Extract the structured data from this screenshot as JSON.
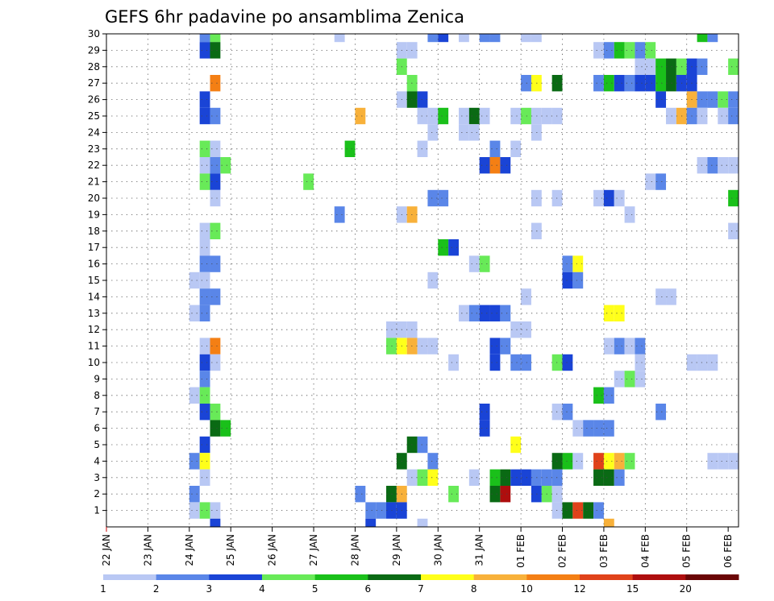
{
  "chart_data": {
    "type": "heatmap",
    "title": "GEFS 6hr padavine po ansamblima Zenica",
    "xlabel": "",
    "ylabel": "",
    "x_ticks": [
      "22 JAN",
      "23 JAN",
      "24 JAN",
      "25 JAN",
      "26 JAN",
      "27 JAN",
      "28 JAN",
      "29 JAN",
      "30 JAN",
      "31 JAN",
      "01 FEB",
      "02 FEB",
      "03 FEB",
      "04 FEB",
      "05 FEB",
      "06 FEB"
    ],
    "y_ticks": [
      1,
      2,
      3,
      4,
      5,
      6,
      7,
      8,
      9,
      10,
      11,
      12,
      13,
      14,
      15,
      16,
      17,
      18,
      19,
      20,
      21,
      22,
      23,
      24,
      25,
      26,
      27,
      28,
      29,
      30
    ],
    "xlim_days": [
      0,
      15.25
    ],
    "ylim": [
      0,
      30
    ],
    "grid": true,
    "legend": "colorbar-bottom",
    "colorbar": {
      "levels": [
        "1",
        "2",
        "3",
        "4",
        "5",
        "6",
        "7",
        "8",
        "10",
        "12",
        "15",
        "20"
      ],
      "colors": [
        "#b9c8f4",
        "#5a86e8",
        "#1a44d6",
        "#68ea58",
        "#1ac01a",
        "#0a6a14",
        "#ffff1a",
        "#f8b13a",
        "#f47f14",
        "#e0421a",
        "#ae0e0e",
        "#6a0606"
      ]
    },
    "cells_note": "each cell: [day offset from 22 JAN, member 1-30, precip class 1-12]",
    "cells": [
      [
        2.25,
        30,
        2
      ],
      [
        2.5,
        30,
        4
      ],
      [
        5.5,
        30,
        1
      ],
      [
        7.75,
        30,
        2
      ],
      [
        8.0,
        30,
        3
      ],
      [
        8.5,
        30,
        1
      ],
      [
        9.0,
        30,
        2
      ],
      [
        9.25,
        30,
        2
      ],
      [
        10.0,
        30,
        1
      ],
      [
        10.25,
        30,
        1
      ],
      [
        14.25,
        30,
        5
      ],
      [
        14.5,
        30,
        2
      ],
      [
        2.25,
        29,
        3
      ],
      [
        2.5,
        29,
        6
      ],
      [
        7.0,
        29,
        1
      ],
      [
        7.25,
        29,
        1
      ],
      [
        11.75,
        29,
        1
      ],
      [
        12.0,
        29,
        2
      ],
      [
        12.25,
        29,
        5
      ],
      [
        12.5,
        29,
        4
      ],
      [
        12.75,
        29,
        2
      ],
      [
        13.0,
        29,
        4
      ],
      [
        7.0,
        28,
        4
      ],
      [
        12.75,
        28,
        1
      ],
      [
        13.0,
        28,
        1
      ],
      [
        13.25,
        28,
        5
      ],
      [
        13.5,
        28,
        6
      ],
      [
        13.75,
        28,
        4
      ],
      [
        14.0,
        28,
        3
      ],
      [
        14.25,
        28,
        2
      ],
      [
        15.0,
        28,
        4
      ],
      [
        2.5,
        27,
        9
      ],
      [
        7.25,
        27,
        4
      ],
      [
        10.0,
        27,
        2
      ],
      [
        10.25,
        27,
        7
      ],
      [
        10.75,
        27,
        6
      ],
      [
        11.75,
        27,
        2
      ],
      [
        12.0,
        27,
        5
      ],
      [
        12.25,
        27,
        3
      ],
      [
        12.5,
        27,
        2
      ],
      [
        12.75,
        27,
        3
      ],
      [
        13.0,
        27,
        3
      ],
      [
        13.25,
        27,
        5
      ],
      [
        13.5,
        27,
        6
      ],
      [
        13.75,
        27,
        3
      ],
      [
        14.0,
        27,
        3
      ],
      [
        2.25,
        26,
        3
      ],
      [
        7.0,
        26,
        1
      ],
      [
        7.25,
        26,
        6
      ],
      [
        7.5,
        26,
        3
      ],
      [
        13.25,
        26,
        3
      ],
      [
        14.0,
        26,
        8
      ],
      [
        14.25,
        26,
        2
      ],
      [
        14.5,
        26,
        2
      ],
      [
        14.75,
        26,
        4
      ],
      [
        15.0,
        26,
        2
      ],
      [
        2.25,
        25,
        3
      ],
      [
        2.5,
        25,
        2
      ],
      [
        6.0,
        25,
        8
      ],
      [
        7.5,
        25,
        1
      ],
      [
        7.75,
        25,
        1
      ],
      [
        8.0,
        25,
        5
      ],
      [
        8.5,
        25,
        1
      ],
      [
        8.75,
        25,
        6
      ],
      [
        9.0,
        25,
        1
      ],
      [
        9.75,
        25,
        1
      ],
      [
        10.0,
        25,
        4
      ],
      [
        10.25,
        25,
        1
      ],
      [
        10.5,
        25,
        1
      ],
      [
        10.75,
        25,
        1
      ],
      [
        13.5,
        25,
        1
      ],
      [
        13.75,
        25,
        8
      ],
      [
        14.0,
        25,
        2
      ],
      [
        14.25,
        25,
        1
      ],
      [
        14.75,
        25,
        1
      ],
      [
        15.0,
        25,
        2
      ],
      [
        15.25,
        25,
        3
      ],
      [
        7.75,
        24,
        1
      ],
      [
        8.5,
        24,
        1
      ],
      [
        8.75,
        24,
        1
      ],
      [
        10.25,
        24,
        1
      ],
      [
        2.25,
        23,
        4
      ],
      [
        2.5,
        23,
        1
      ],
      [
        5.75,
        23,
        5
      ],
      [
        7.5,
        23,
        1
      ],
      [
        9.25,
        23,
        2
      ],
      [
        9.75,
        23,
        1
      ],
      [
        2.25,
        22,
        1
      ],
      [
        2.5,
        22,
        2
      ],
      [
        2.75,
        22,
        4
      ],
      [
        9.0,
        22,
        3
      ],
      [
        9.25,
        22,
        9
      ],
      [
        9.5,
        22,
        3
      ],
      [
        14.25,
        22,
        1
      ],
      [
        14.5,
        22,
        2
      ],
      [
        14.75,
        22,
        1
      ],
      [
        15.0,
        22,
        1
      ],
      [
        2.25,
        21,
        4
      ],
      [
        2.5,
        21,
        3
      ],
      [
        4.75,
        21,
        4
      ],
      [
        13.0,
        21,
        1
      ],
      [
        13.25,
        21,
        2
      ],
      [
        2.5,
        20,
        1
      ],
      [
        7.75,
        20,
        2
      ],
      [
        8.0,
        20,
        2
      ],
      [
        10.25,
        20,
        1
      ],
      [
        10.75,
        20,
        1
      ],
      [
        11.75,
        20,
        1
      ],
      [
        12.0,
        20,
        3
      ],
      [
        12.25,
        20,
        1
      ],
      [
        15.0,
        20,
        5
      ],
      [
        15.25,
        20,
        7
      ],
      [
        5.5,
        19,
        2
      ],
      [
        7.0,
        19,
        1
      ],
      [
        7.25,
        19,
        8
      ],
      [
        12.5,
        19,
        1
      ],
      [
        2.25,
        18,
        1
      ],
      [
        2.5,
        18,
        4
      ],
      [
        10.25,
        18,
        1
      ],
      [
        15.0,
        18,
        1
      ],
      [
        2.25,
        17,
        1
      ],
      [
        8.0,
        17,
        5
      ],
      [
        8.25,
        17,
        3
      ],
      [
        2.25,
        16,
        2
      ],
      [
        2.5,
        16,
        2
      ],
      [
        8.75,
        16,
        1
      ],
      [
        9.0,
        16,
        4
      ],
      [
        11.0,
        16,
        2
      ],
      [
        11.25,
        16,
        7
      ],
      [
        2.0,
        15,
        1
      ],
      [
        2.25,
        15,
        1
      ],
      [
        7.75,
        15,
        1
      ],
      [
        11.0,
        15,
        3
      ],
      [
        11.25,
        15,
        2
      ],
      [
        2.25,
        14,
        2
      ],
      [
        2.5,
        14,
        2
      ],
      [
        10.0,
        14,
        1
      ],
      [
        13.25,
        14,
        1
      ],
      [
        13.5,
        14,
        1
      ],
      [
        2.0,
        13,
        1
      ],
      [
        2.25,
        13,
        2
      ],
      [
        8.5,
        13,
        1
      ],
      [
        8.75,
        13,
        2
      ],
      [
        9.0,
        13,
        3
      ],
      [
        9.25,
        13,
        3
      ],
      [
        9.5,
        13,
        2
      ],
      [
        12.0,
        13,
        7
      ],
      [
        12.25,
        13,
        7
      ],
      [
        15.25,
        13,
        2
      ],
      [
        6.75,
        12,
        1
      ],
      [
        7.0,
        12,
        1
      ],
      [
        7.25,
        12,
        1
      ],
      [
        9.75,
        12,
        1
      ],
      [
        10.0,
        12,
        1
      ],
      [
        2.25,
        11,
        1
      ],
      [
        2.5,
        11,
        9
      ],
      [
        6.75,
        11,
        4
      ],
      [
        7.0,
        11,
        7
      ],
      [
        7.25,
        11,
        8
      ],
      [
        7.5,
        11,
        1
      ],
      [
        7.75,
        11,
        1
      ],
      [
        9.25,
        11,
        3
      ],
      [
        9.5,
        11,
        2
      ],
      [
        12.0,
        11,
        1
      ],
      [
        12.25,
        11,
        2
      ],
      [
        12.5,
        11,
        1
      ],
      [
        12.75,
        11,
        2
      ],
      [
        2.25,
        10,
        3
      ],
      [
        2.5,
        10,
        1
      ],
      [
        8.25,
        10,
        1
      ],
      [
        9.25,
        10,
        3
      ],
      [
        9.75,
        10,
        2
      ],
      [
        10.0,
        10,
        2
      ],
      [
        10.75,
        10,
        4
      ],
      [
        11.0,
        10,
        3
      ],
      [
        12.75,
        10,
        1
      ],
      [
        14.0,
        10,
        1
      ],
      [
        14.25,
        10,
        1
      ],
      [
        14.5,
        10,
        1
      ],
      [
        2.25,
        9,
        2
      ],
      [
        12.25,
        9,
        1
      ],
      [
        12.5,
        9,
        4
      ],
      [
        12.75,
        9,
        1
      ],
      [
        2.0,
        8,
        1
      ],
      [
        2.25,
        8,
        4
      ],
      [
        11.75,
        8,
        5
      ],
      [
        12.0,
        8,
        2
      ],
      [
        2.25,
        7,
        3
      ],
      [
        2.5,
        7,
        4
      ],
      [
        9.0,
        7,
        3
      ],
      [
        10.75,
        7,
        1
      ],
      [
        11.0,
        7,
        2
      ],
      [
        13.25,
        7,
        2
      ],
      [
        2.5,
        6,
        6
      ],
      [
        2.75,
        6,
        5
      ],
      [
        9.0,
        6,
        3
      ],
      [
        11.25,
        6,
        1
      ],
      [
        11.5,
        6,
        2
      ],
      [
        11.75,
        6,
        2
      ],
      [
        12.0,
        6,
        2
      ],
      [
        2.25,
        5,
        3
      ],
      [
        7.25,
        5,
        6
      ],
      [
        7.5,
        5,
        2
      ],
      [
        9.75,
        5,
        7
      ],
      [
        2.0,
        4,
        2
      ],
      [
        2.25,
        4,
        7
      ],
      [
        7.0,
        4,
        6
      ],
      [
        7.75,
        4,
        2
      ],
      [
        10.75,
        4,
        6
      ],
      [
        11.0,
        4,
        5
      ],
      [
        11.25,
        4,
        1
      ],
      [
        11.75,
        4,
        10
      ],
      [
        12.0,
        4,
        7
      ],
      [
        12.25,
        4,
        8
      ],
      [
        12.5,
        4,
        4
      ],
      [
        14.5,
        4,
        1
      ],
      [
        14.75,
        4,
        1
      ],
      [
        15.0,
        4,
        1
      ],
      [
        2.25,
        3,
        1
      ],
      [
        7.25,
        3,
        1
      ],
      [
        7.5,
        3,
        4
      ],
      [
        7.75,
        3,
        7
      ],
      [
        8.75,
        3,
        1
      ],
      [
        9.25,
        3,
        5
      ],
      [
        9.5,
        3,
        6
      ],
      [
        9.75,
        3,
        3
      ],
      [
        10.0,
        3,
        3
      ],
      [
        10.25,
        3,
        2
      ],
      [
        10.5,
        3,
        2
      ],
      [
        10.75,
        3,
        2
      ],
      [
        11.75,
        3,
        6
      ],
      [
        12.0,
        3,
        6
      ],
      [
        12.25,
        3,
        2
      ],
      [
        2.0,
        2,
        2
      ],
      [
        6.0,
        2,
        2
      ],
      [
        6.75,
        2,
        6
      ],
      [
        7.0,
        2,
        8
      ],
      [
        8.25,
        2,
        4
      ],
      [
        9.25,
        2,
        6
      ],
      [
        9.5,
        2,
        11
      ],
      [
        10.25,
        2,
        3
      ],
      [
        10.5,
        2,
        4
      ],
      [
        10.75,
        2,
        1
      ],
      [
        2.0,
        1,
        1
      ],
      [
        2.25,
        1,
        4
      ],
      [
        2.5,
        1,
        1
      ],
      [
        6.25,
        1,
        2
      ],
      [
        6.5,
        1,
        2
      ],
      [
        6.75,
        1,
        3
      ],
      [
        7.0,
        1,
        3
      ],
      [
        10.75,
        1,
        1
      ],
      [
        11.0,
        1,
        6
      ],
      [
        11.25,
        1,
        10
      ],
      [
        11.5,
        1,
        6
      ],
      [
        11.75,
        1,
        2
      ],
      [
        2.5,
        0,
        3
      ],
      [
        6.25,
        0,
        3
      ],
      [
        7.5,
        0,
        1
      ],
      [
        12.0,
        0,
        8
      ]
    ]
  }
}
